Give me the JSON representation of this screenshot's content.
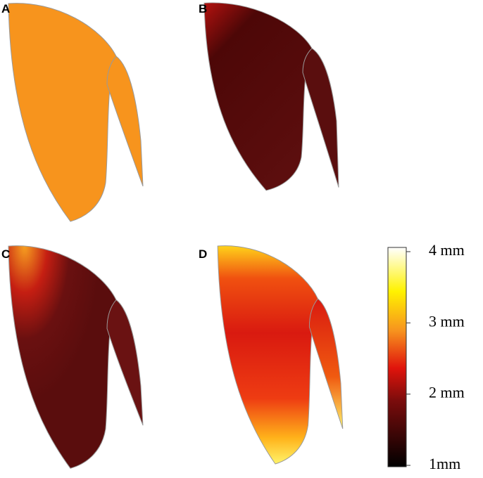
{
  "panels": [
    {
      "label": "A"
    },
    {
      "label": "B"
    },
    {
      "label": "C"
    },
    {
      "label": "D"
    }
  ],
  "colorbar": {
    "lim": [
      1,
      4
    ],
    "ticks": [
      {
        "value": 4,
        "label": "4 mm"
      },
      {
        "value": 3,
        "label": "3 mm"
      },
      {
        "value": 2,
        "label": "2 mm"
      },
      {
        "value": 1,
        "label": "1mm"
      }
    ]
  }
}
